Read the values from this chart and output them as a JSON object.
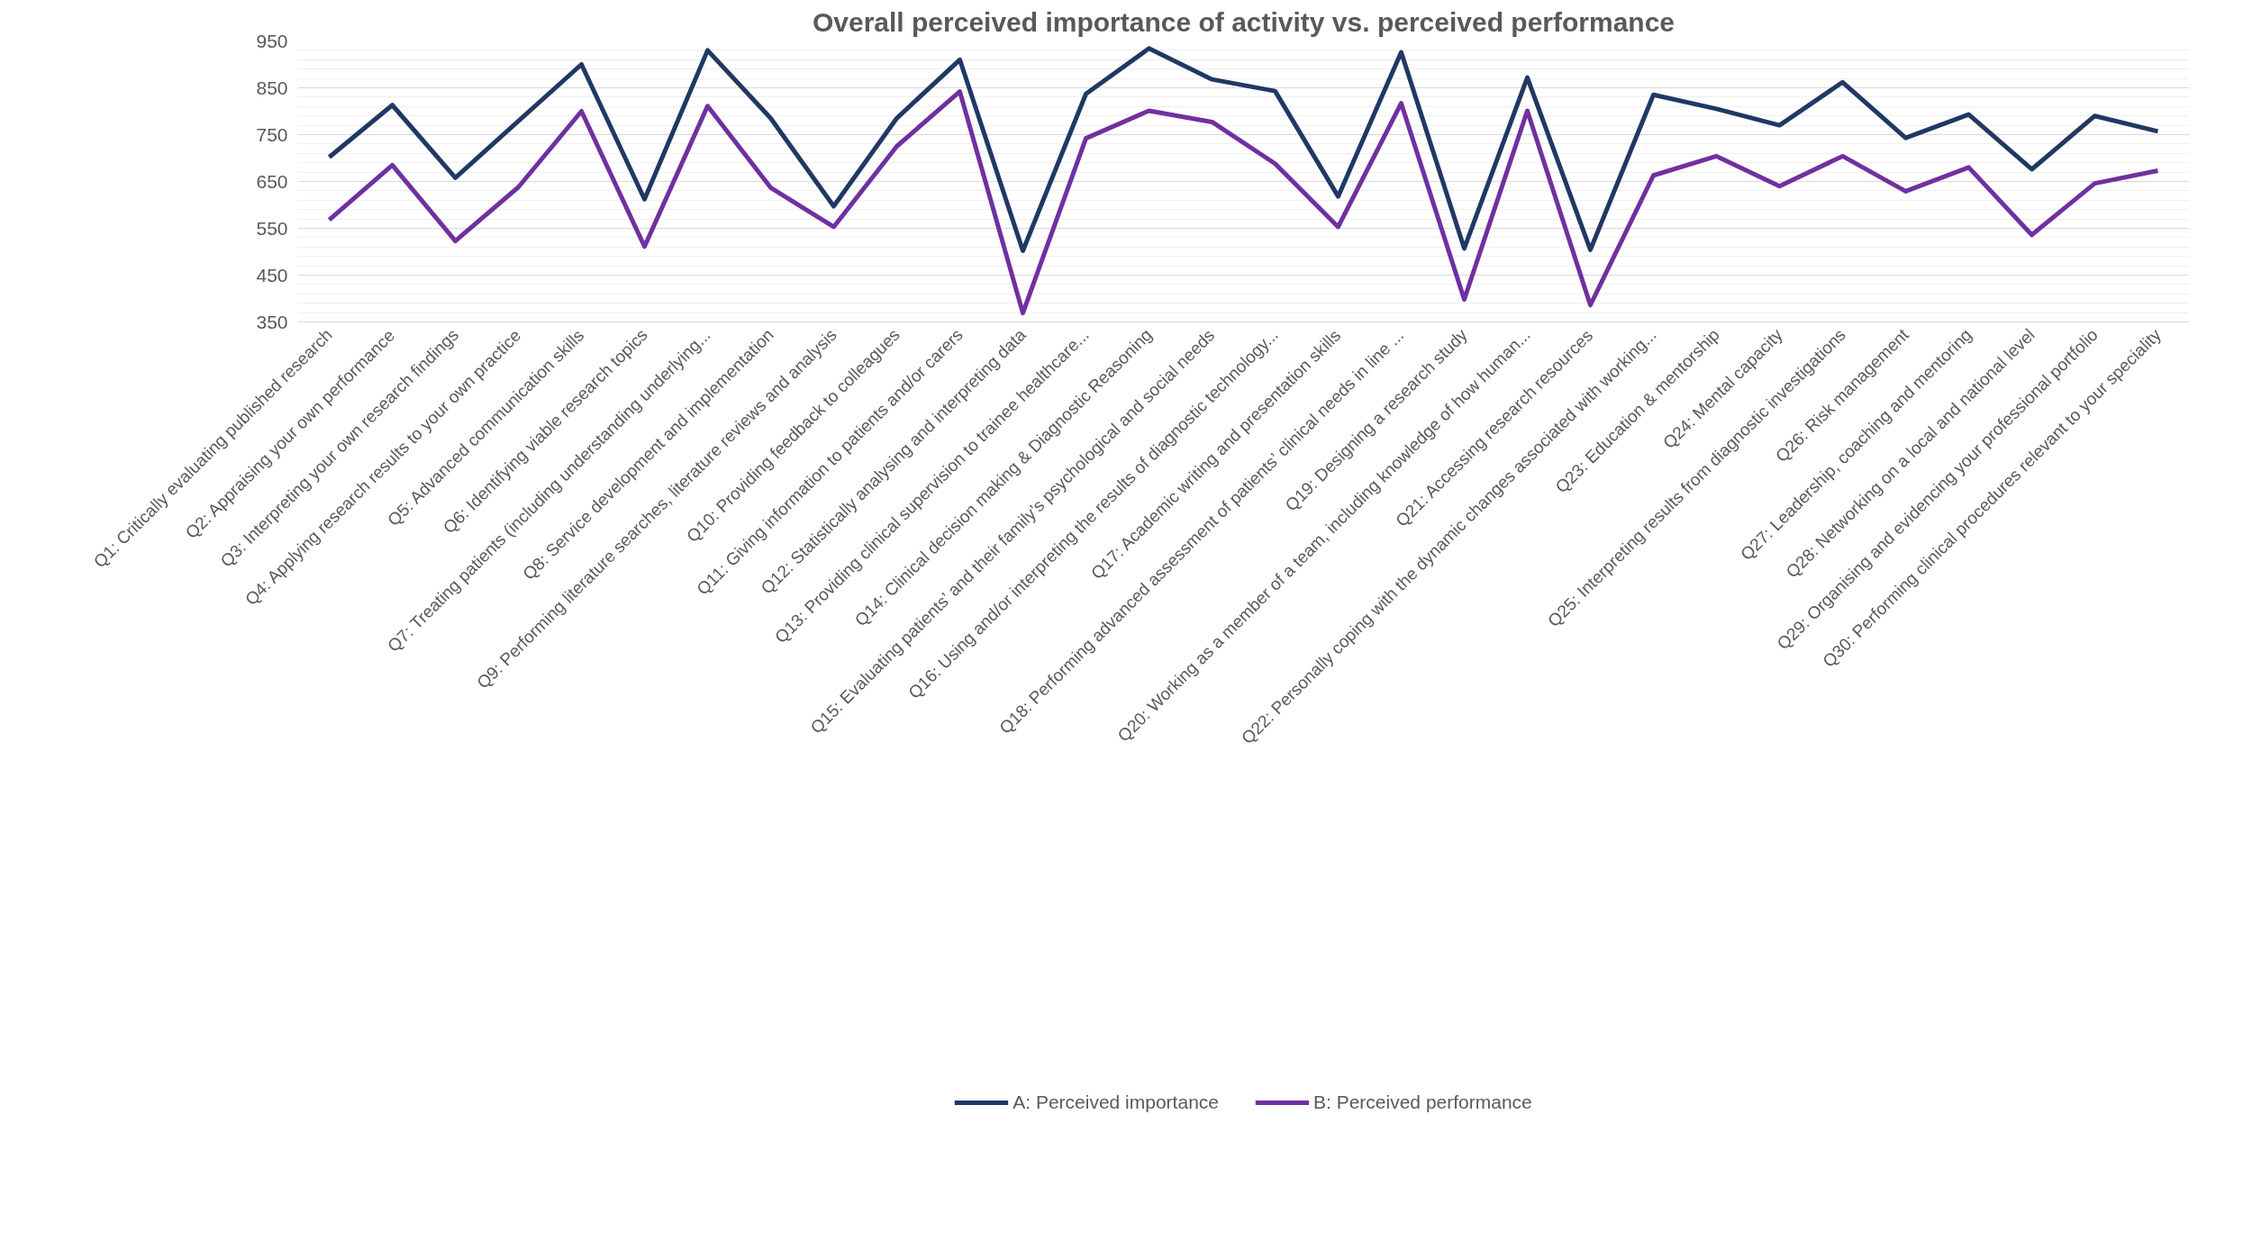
{
  "chart_data": {
    "type": "line",
    "title": "Overall perceived importance of activity vs. perceived performance",
    "categories": [
      "Q1: Critically evaluating published research",
      "Q2: Appraising your own performance",
      "Q3: Interpreting your own research findings",
      "Q4: Applying research results to your own practice",
      "Q5: Advanced communication skills",
      "Q6: Identifying viable research topics",
      "Q7: Treating patients (including understanding underlying...",
      "Q8: Service development and implementation",
      "Q9: Performing literature searches, literature reviews and analysis",
      "Q10: Providing feedback to colleagues",
      "Q11: Giving information to patients and/or carers",
      "Q12: Statistically analysing and interpreting data",
      "Q13: Providing clinical supervision to trainee healthcare...",
      "Q14: Clinical decision making & Diagnostic Reasoning",
      "Q15: Evaluating patients’ and their family’s psychological and social needs",
      "Q16: Using and/or interpreting the results of diagnostic technology...",
      "Q17: Academic writing and presentation skills",
      "Q18: Performing advanced assessment of patients’ clinical needs in line ...",
      "Q19: Designing a research study",
      "Q20: Working as a member of a team, including knowledge of how human...",
      "Q21: Accessing research resources",
      "Q22: Personally coping with the dynamic changes associated with working...",
      "Q23: Education & mentorship",
      "Q24: Mental capacity",
      "Q25: Interpreting results from diagnostic investigations",
      "Q26: Risk management",
      "Q27: Leadership, coaching and mentoring",
      "Q28: Networking on a local and national level",
      "Q29: Organising and evidencing your professional portfolio",
      "Q30: Performing clinical procedures relevant to your speciality"
    ],
    "series": [
      {
        "name": "A: Perceived importance",
        "color": "#203864",
        "values": [
          702,
          813,
          658,
          779,
          900,
          612,
          930,
          785,
          597,
          785,
          910,
          502,
          837,
          934,
          868,
          843,
          618,
          926,
          507,
          872,
          504,
          835,
          805,
          770,
          862,
          743,
          793,
          676,
          790,
          757
        ]
      },
      {
        "name": "B: Perceived performance",
        "color": "#7030a0",
        "values": [
          568,
          685,
          523,
          638,
          800,
          511,
          811,
          637,
          553,
          725,
          842,
          369,
          742,
          801,
          777,
          688,
          553,
          817,
          398,
          801,
          386,
          663,
          704,
          640,
          704,
          629,
          680,
          536,
          646,
          673
        ]
      }
    ],
    "ylim": [
      350,
      950
    ],
    "yticks": [
      350,
      450,
      550,
      650,
      750,
      850,
      950
    ],
    "grid": "y",
    "legend": "bottom",
    "marker": "none",
    "line_style": "solid"
  }
}
